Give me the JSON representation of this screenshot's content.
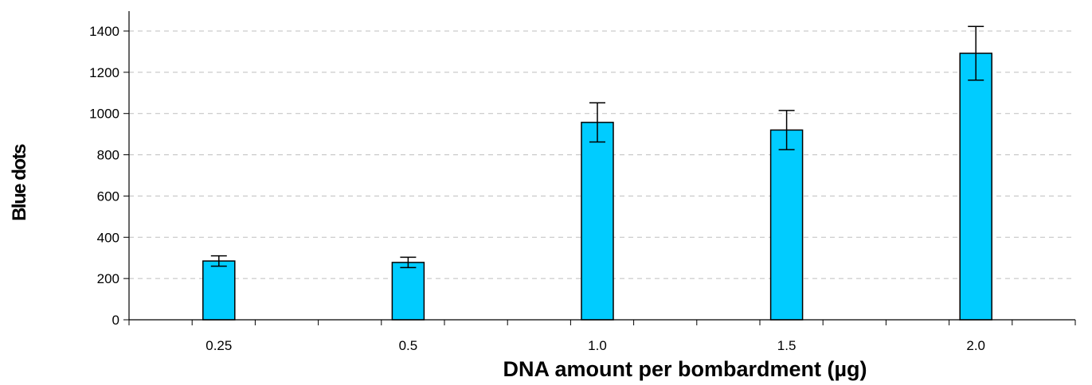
{
  "chart_data": {
    "type": "bar",
    "title": "",
    "xlabel": "DNA amount per bombardment (µg)",
    "ylabel": "Blue dots",
    "categories": [
      "0.25",
      "0.5",
      "1.0",
      "1.5",
      "2.0"
    ],
    "values": [
      285,
      278,
      957,
      920,
      1292
    ],
    "error": [
      25,
      25,
      95,
      95,
      130
    ],
    "ylim": [
      0,
      1400
    ],
    "yticks": [
      0,
      200,
      400,
      600,
      800,
      1000,
      1200,
      1400
    ],
    "grid": true,
    "bar_color": "#00CCFF",
    "grid_color": "#BFBFBF"
  }
}
